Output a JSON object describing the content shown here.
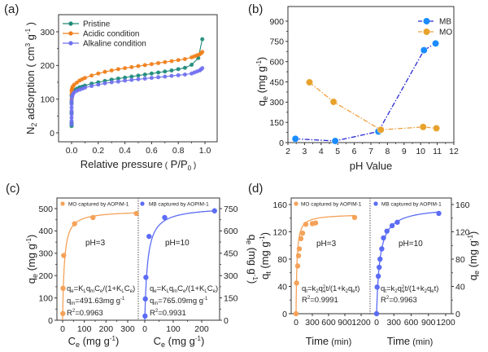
{
  "chart_data": [
    {
      "id": "a",
      "panel_label": "(a)",
      "type": "line",
      "xlabel": "Relative pressure (P/P0)",
      "ylabel": "N2 adsorption (cm3 g-1)",
      "xlim": [
        -0.1,
        1.1
      ],
      "ylim": [
        -25,
        360
      ],
      "xticks": [
        0.0,
        0.2,
        0.4,
        0.6,
        0.8,
        1.0
      ],
      "xtick_labels": [
        "0.0",
        "0.2",
        "0.4",
        "0.6",
        "0.8",
        "1.0"
      ],
      "yticks": [
        0,
        100,
        200,
        300
      ],
      "ytick_labels": [
        "0",
        "100",
        "200",
        "300"
      ],
      "legend_position": "top-left",
      "series": [
        {
          "name": "Pristine",
          "color": "#1b8a78",
          "x": [
            0.0,
            0.0,
            0.0,
            0.0,
            0.0,
            0.0,
            0.005,
            0.01,
            0.02,
            0.04,
            0.06,
            0.08,
            0.1,
            0.15,
            0.2,
            0.25,
            0.3,
            0.35,
            0.4,
            0.45,
            0.5,
            0.55,
            0.6,
            0.65,
            0.7,
            0.75,
            0.8,
            0.85,
            0.9,
            0.95,
            0.98
          ],
          "y": [
            20,
            25,
            30,
            60,
            90,
            110,
            118,
            122,
            127,
            131,
            135,
            137,
            140,
            146,
            150,
            154,
            158,
            161,
            164,
            167,
            170,
            173,
            176,
            179,
            182,
            185,
            189,
            193,
            202,
            222,
            278
          ]
        },
        {
          "name": "Acidic condition",
          "color": "#f07e1a",
          "x": [
            0.0,
            0.0,
            0.0,
            0.003,
            0.006,
            0.01,
            0.02,
            0.04,
            0.06,
            0.08,
            0.1,
            0.15,
            0.2,
            0.25,
            0.3,
            0.35,
            0.4,
            0.45,
            0.5,
            0.55,
            0.6,
            0.65,
            0.7,
            0.75,
            0.8,
            0.85,
            0.9,
            0.92,
            0.94,
            0.96,
            0.97,
            0.98
          ],
          "y": [
            100,
            115,
            125,
            130,
            134,
            138,
            143,
            149,
            155,
            159,
            163,
            170,
            176,
            181,
            185,
            189,
            192,
            195,
            198,
            201,
            204,
            207,
            210,
            213,
            216,
            219,
            224,
            227,
            230,
            233,
            236,
            240
          ]
        },
        {
          "name": "Alkaline condition",
          "color": "#6f6ff0",
          "x": [
            0.0,
            0.0,
            0.0,
            0.0,
            0.0,
            0.0,
            0.0,
            0.0,
            0.003,
            0.006,
            0.01,
            0.02,
            0.04,
            0.06,
            0.08,
            0.1,
            0.15,
            0.2,
            0.25,
            0.3,
            0.35,
            0.4,
            0.45,
            0.5,
            0.55,
            0.6,
            0.65,
            0.7,
            0.75,
            0.8,
            0.85,
            0.9,
            0.92,
            0.94,
            0.96,
            0.97,
            0.98
          ],
          "y": [
            25,
            35,
            45,
            55,
            65,
            75,
            85,
            95,
            105,
            110,
            115,
            120,
            125,
            128,
            131,
            134,
            139,
            143,
            147,
            150,
            152,
            155,
            157,
            159,
            161,
            163,
            165,
            167,
            169,
            171,
            173,
            176,
            179,
            182,
            185,
            188,
            192
          ]
        }
      ]
    },
    {
      "id": "b",
      "panel_label": "(b)",
      "type": "line",
      "xlabel": "pH Value",
      "ylabel": "qe (mg g-1)",
      "xlim": [
        2,
        12
      ],
      "ylim": [
        0,
        950
      ],
      "xticks": [
        2,
        3,
        4,
        5,
        6,
        7,
        8,
        9,
        10,
        11,
        12
      ],
      "xtick_labels": [
        "2",
        "3",
        "4",
        "5",
        "6",
        "7",
        "8",
        "9",
        "10",
        "11",
        "12"
      ],
      "yticks": [
        0,
        150,
        300,
        450,
        600,
        750,
        900
      ],
      "ytick_labels": [
        "0",
        "150",
        "300",
        "450",
        "600",
        "750",
        "900"
      ],
      "legend_position": "top-right",
      "series": [
        {
          "name": "MB",
          "color": "#1a8cff",
          "line_color": "#2b2bd6",
          "x": [
            2.45,
            4.85,
            7.45,
            10.2,
            10.9
          ],
          "y": [
            28,
            12,
            82,
            685,
            735
          ]
        },
        {
          "name": "MO",
          "color": "#e8a22c",
          "line_color": "#f0a040",
          "x": [
            3.3,
            4.75,
            7.6,
            10.15,
            10.95
          ],
          "y": [
            447,
            302,
            95,
            116,
            106
          ]
        }
      ]
    },
    {
      "id": "c",
      "panel_label": "(c)",
      "type": "scatter",
      "xlabel": "Ce (mg g-1)",
      "ylabel_left": "qe (mg g-1)",
      "ylabel_right": "qe (mg g-1)",
      "subplots": [
        {
          "name": "MO captured by AOPIM-1",
          "color": "#f5a259",
          "xlim": [
            -25,
            370
          ],
          "ylim": [
            0,
            520
          ],
          "xticks": [
            0,
            100,
            200,
            300
          ],
          "xtick_labels": [
            "0",
            "100",
            "200",
            "300"
          ],
          "yticks": [
            0,
            100,
            200,
            300,
            400,
            500
          ],
          "ytick_labels": [
            "0",
            "100",
            "200",
            "300",
            "400",
            "500"
          ],
          "x": [
            1,
            2,
            5,
            55,
            140,
            340
          ],
          "y": [
            30,
            143,
            290,
            432,
            460,
            478
          ],
          "fit": {
            "model": "langmuir",
            "qm": 491.63,
            "KL": 0.13
          },
          "ph_label": "pH=3",
          "equation": "qe=KLqmCe/(1+KLCe)",
          "qm_label": "qm=491.63mg g-1",
          "r2_label": "R2=0.9963"
        },
        {
          "name": "MB captured by AOPIM-1",
          "color": "#5b6cf5",
          "xlim": [
            -10,
            265
          ],
          "ylim": [
            0,
            780
          ],
          "xticks": [
            0,
            100,
            200
          ],
          "xtick_labels": [
            "0",
            "100",
            "200"
          ],
          "yticks": [
            0,
            150,
            300,
            450,
            600,
            750
          ],
          "ytick_labels": [
            "0",
            "150",
            "300",
            "450",
            "600",
            "750"
          ],
          "x": [
            1,
            2,
            4,
            15,
            70,
            245
          ],
          "y": [
            28,
            143,
            288,
            563,
            690,
            735
          ],
          "fit": {
            "model": "langmuir",
            "qm": 765.09,
            "KL": 0.1
          },
          "ph_label": "pH=10",
          "equation": "qe=KLqmCe/(1+KLCe)",
          "qm_label": "qm=765.09mg g-1",
          "r2_label": "R2=0.9931"
        }
      ]
    },
    {
      "id": "d",
      "panel_label": "(d)",
      "type": "scatter",
      "xlabel": "Time (min)",
      "ylabel_left": "qt (mg g-1)",
      "ylabel_right": "qe (mg g-1)",
      "subplots": [
        {
          "name": "MO captured by AOPIM-1",
          "color": "#f5a259",
          "xlim": [
            -80,
            1380
          ],
          "ylim": [
            -5,
            165
          ],
          "xticks": [
            0,
            300,
            600,
            900,
            1200
          ],
          "xtick_labels": [
            "0",
            "300",
            "600",
            "900",
            "1200"
          ],
          "yticks": [
            0,
            40,
            80,
            120,
            160
          ],
          "ytick_labels": [
            "0",
            "40",
            "80",
            "120",
            "160"
          ],
          "x": [
            0,
            10,
            30,
            45,
            60,
            90,
            120,
            180,
            300,
            360,
            1080
          ],
          "y": [
            0,
            45,
            70,
            85,
            95,
            110,
            118,
            131,
            132,
            133,
            141
          ],
          "fit": {
            "model": "pseudo-second-order",
            "qe": 146,
            "k2": 0.0004
          },
          "ph_label": "pH=3",
          "equation": "qt=k2qe2t/(1+k2qet)",
          "r2_label": "R2=0.9991"
        },
        {
          "name": "MB captured by AOPIM-1",
          "color": "#5b6cf5",
          "xlim": [
            -80,
            1380
          ],
          "ylim": [
            -5,
            165
          ],
          "xticks": [
            0,
            300,
            600,
            900,
            1200
          ],
          "xtick_labels": [
            "0",
            "300",
            "600",
            "900",
            "1200"
          ],
          "yticks": [
            0,
            40,
            80,
            120,
            160
          ],
          "ytick_labels": [
            "0",
            "40",
            "80",
            "120",
            "160"
          ],
          "x": [
            0,
            10,
            30,
            45,
            60,
            90,
            120,
            180,
            270,
            360,
            1080
          ],
          "y": [
            0,
            39,
            55,
            68,
            80,
            95,
            111,
            121,
            129,
            134,
            147
          ],
          "fit": {
            "model": "pseudo-second-order",
            "qe": 157,
            "k2": 0.00011
          },
          "ph_label": "pH=10",
          "equation": "qt=k2qe2t/(1+k2qet)",
          "r2_label": "R2=0.9963"
        }
      ]
    }
  ],
  "labels": {
    "a": {
      "panel": "(a)",
      "xlabel": "Relative pressure",
      "xlabel_paren": "( P/P",
      "xlabel_sub": "0",
      "xlabel_close": " )",
      "ylabel_main": "N",
      "ylabel_sub": "2",
      "ylabel_rest": " adsorption ( cm",
      "ylabel_sup3": "3",
      "ylabel_g": " g",
      "ylabel_supm1": "-1",
      "ylabel_close": " )",
      "legend": [
        "Pristine",
        "Acidic condition",
        "Alkaline condition"
      ]
    },
    "b": {
      "panel": "(b)",
      "xlabel": "pH Value",
      "ylabel_q": "q",
      "ylabel_sub": "e",
      "ylabel_rest": " (mg g",
      "ylabel_sup": "-1",
      "ylabel_close": ")",
      "legend": [
        "MB",
        "MO"
      ]
    },
    "c": {
      "panel": "(c)",
      "xlabel_C": "C",
      "xlabel_sub": "e",
      "xlabel_rest": " (mg g",
      "xlabel_sup": "-1",
      "xlabel_close": ")",
      "ylabel_q": "q",
      "ylabel_sub": "e",
      "ylabel_rest": " (mg g",
      "ylabel_sup": "-1",
      "ylabel_close": ")",
      "legend_left": "MO captured by AOPIM-1",
      "legend_right": "MB captured by AOPIM-1",
      "ph_left": "pH=3",
      "ph_right": "pH=10",
      "eq": "qe=KLqmCe/(1+KLCe)",
      "qm_left": "491.63mg g",
      "qm_right": "765.09mg g",
      "r2_left": "=0.9963",
      "r2_right": "=0.9931"
    },
    "d": {
      "panel": "(d)",
      "xlabel": "Time",
      "xlabel_unit": " (min)",
      "ylabel_left_q": "q",
      "ylabel_left_sub": "t",
      "ylabel_right_q": "q",
      "ylabel_right_sub": "e",
      "ylabel_rest": " (mg g",
      "ylabel_sup": "-1",
      "ylabel_close": ")",
      "legend_left": "MO captured by AOPIM-1",
      "legend_right": "MB captured by AOPIM-1",
      "ph_left": "pH=3",
      "ph_right": "pH=10",
      "r2_left": "=0.9991",
      "r2_right": "=0.9963"
    }
  }
}
